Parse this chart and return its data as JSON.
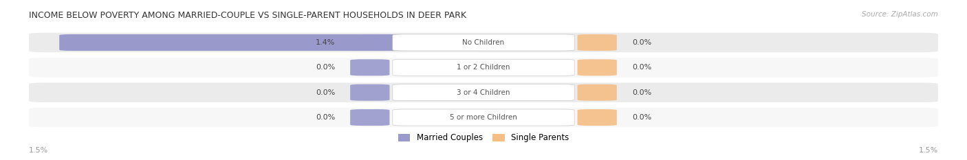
{
  "title": "INCOME BELOW POVERTY AMONG MARRIED-COUPLE VS SINGLE-PARENT HOUSEHOLDS IN DEER PARK",
  "source": "Source: ZipAtlas.com",
  "categories": [
    "No Children",
    "1 or 2 Children",
    "3 or 4 Children",
    "5 or more Children"
  ],
  "married_values": [
    1.4,
    0.0,
    0.0,
    0.0
  ],
  "single_values": [
    0.0,
    0.0,
    0.0,
    0.0
  ],
  "married_color": "#9999cc",
  "single_color": "#f5be85",
  "row_bg_colors": [
    "#ebebeb",
    "#f7f7f7"
  ],
  "axis_max": 1.5,
  "legend_married": "Married Couples",
  "legend_single": "Single Parents",
  "background_color": "#ffffff"
}
